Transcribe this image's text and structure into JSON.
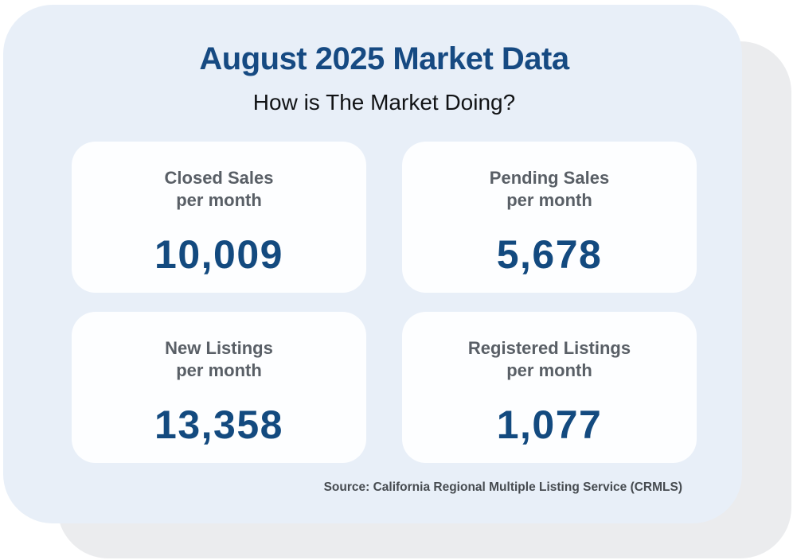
{
  "header": {
    "title": "August 2025 Market Data",
    "subtitle": "How is The Market Doing?"
  },
  "stats": [
    {
      "label_line1": "Closed Sales",
      "label_line2": "per month",
      "value": "10,009"
    },
    {
      "label_line1": "Pending Sales",
      "label_line2": "per month",
      "value": "5,678"
    },
    {
      "label_line1": "New Listings",
      "label_line2": "per month",
      "value": "13,358"
    },
    {
      "label_line1": "Registered Listings",
      "label_line2": "per month",
      "value": "1,077"
    }
  ],
  "footer": {
    "source": "Source: California Regional Multiple Listing Service (CRMLS)"
  },
  "colors": {
    "page_background": "#ffffff",
    "main_card_background": "#e8eff8",
    "shadow_card_background": "#ebecee",
    "stat_card_background": "#fdfeff",
    "title_text": "#164a82",
    "subtitle_text": "#111315",
    "stat_label_text": "#595f66",
    "stat_value_text": "#134a7f",
    "source_text": "#464b50"
  },
  "chart_data": {
    "type": "table",
    "title": "August 2025 Market Data",
    "subtitle": "How is The Market Doing?",
    "categories": [
      "Closed Sales per month",
      "Pending Sales per month",
      "New Listings per month",
      "Registered Listings per month"
    ],
    "values": [
      10009,
      5678,
      13358,
      1077
    ],
    "source": "Source: California Regional Multiple Listing Service (CRMLS)"
  }
}
